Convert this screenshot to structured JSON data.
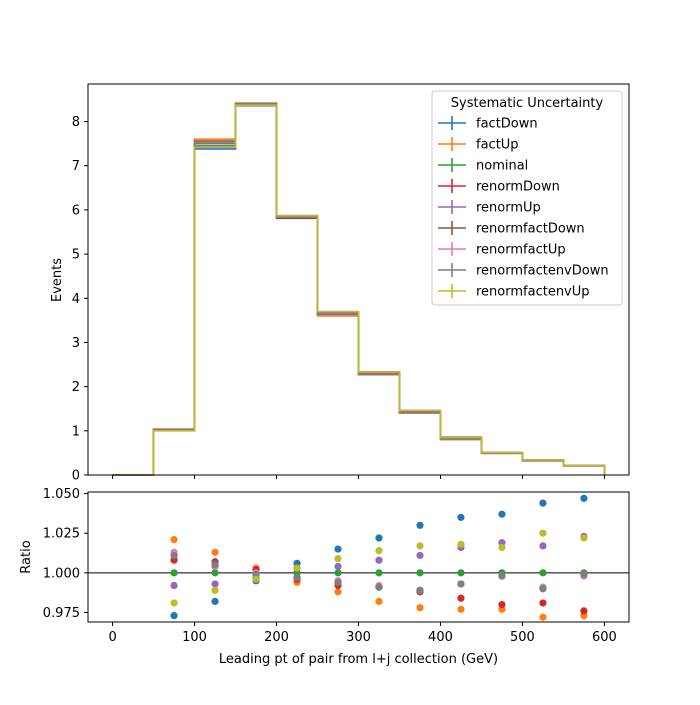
{
  "chart_data": [
    {
      "type": "line",
      "subtype": "step-histogram",
      "title": "",
      "xlabel": "",
      "ylabel": "Events",
      "xlim": [
        -30,
        630
      ],
      "ylim": [
        0,
        8.85
      ],
      "xticks": [
        0,
        100,
        200,
        300,
        400,
        500,
        600
      ],
      "yticks": [
        0,
        1,
        2,
        3,
        4,
        5,
        6,
        7,
        8
      ],
      "bin_edges": [
        0,
        50,
        100,
        150,
        200,
        250,
        300,
        350,
        400,
        450,
        500,
        550,
        600
      ],
      "legend": {
        "title": "Systematic Uncertainty",
        "placement": "top-right"
      },
      "series": [
        {
          "name": "factDown",
          "color": "#1f77b4",
          "values": [
            0,
            1.03,
            7.38,
            8.36,
            5.81,
            3.63,
            2.33,
            1.46,
            0.86,
            0.51,
            0.34,
            0.21
          ]
        },
        {
          "name": "factUp",
          "color": "#ff7f0e",
          "values": [
            0,
            1.04,
            7.6,
            8.42,
            5.83,
            3.6,
            2.27,
            1.4,
            0.8,
            0.49,
            0.32,
            0.2
          ]
        },
        {
          "name": "nominal",
          "color": "#2ca02c",
          "values": [
            0,
            1.02,
            7.5,
            8.4,
            5.85,
            3.65,
            2.3,
            1.43,
            0.83,
            0.5,
            0.33,
            0.21
          ]
        },
        {
          "name": "renormDown",
          "color": "#d62728",
          "values": [
            0,
            1.03,
            7.56,
            8.41,
            5.82,
            3.63,
            2.29,
            1.41,
            0.82,
            0.49,
            0.32,
            0.2
          ]
        },
        {
          "name": "renormUp",
          "color": "#9467bd",
          "values": [
            0,
            1.01,
            7.45,
            8.38,
            5.87,
            3.67,
            2.33,
            1.45,
            0.85,
            0.51,
            0.34,
            0.21
          ]
        },
        {
          "name": "renormfactDown",
          "color": "#8c564b",
          "values": [
            0,
            1.03,
            7.54,
            8.4,
            5.84,
            3.64,
            2.27,
            1.41,
            0.82,
            0.5,
            0.33,
            0.21
          ]
        },
        {
          "name": "renormfactUp",
          "color": "#e377c2",
          "values": [
            0,
            1.03,
            7.53,
            8.41,
            5.84,
            3.63,
            2.28,
            1.41,
            0.82,
            0.49,
            0.32,
            0.2
          ]
        },
        {
          "name": "renormfactenvDown",
          "color": "#7f7f7f",
          "values": [
            0,
            1.03,
            7.54,
            8.41,
            5.84,
            3.64,
            2.27,
            1.41,
            0.82,
            0.5,
            0.33,
            0.21
          ]
        },
        {
          "name": "renormfactenvUp",
          "color": "#bcbd22",
          "values": [
            0,
            1.0,
            7.42,
            8.37,
            5.87,
            3.7,
            2.33,
            1.46,
            0.85,
            0.51,
            0.34,
            0.21
          ]
        }
      ]
    },
    {
      "type": "scatter",
      "title": "",
      "xlabel": "Leading pt of pair from l+j collection (GeV)",
      "ylabel": "Ratio",
      "xlim": [
        -30,
        630
      ],
      "ylim": [
        0.969,
        1.051
      ],
      "xticks": [
        0,
        100,
        200,
        300,
        400,
        500,
        600
      ],
      "yticks": [
        0.975,
        1.0,
        1.025,
        1.05
      ],
      "ytick_labels": [
        "0.975",
        "1.000",
        "1.025",
        "1.050"
      ],
      "reference_line": 1.0,
      "x": [
        75,
        125,
        175,
        225,
        275,
        325,
        375,
        425,
        475,
        525,
        575
      ],
      "series": [
        {
          "name": "factDown",
          "color": "#1f77b4",
          "values": [
            0.973,
            0.982,
            0.995,
            1.006,
            1.015,
            1.022,
            1.03,
            1.035,
            1.037,
            1.044,
            1.047
          ]
        },
        {
          "name": "factUp",
          "color": "#ff7f0e",
          "values": [
            1.021,
            1.013,
            1.003,
            0.994,
            0.988,
            0.982,
            0.978,
            0.977,
            0.977,
            0.972,
            0.973
          ]
        },
        {
          "name": "nominal",
          "color": "#2ca02c",
          "values": [
            1.0,
            1.0,
            1.0,
            1.0,
            1.0,
            1.0,
            1.0,
            1.0,
            1.0,
            1.0,
            1.0
          ]
        },
        {
          "name": "renormDown",
          "color": "#d62728",
          "values": [
            1.008,
            1.007,
            1.002,
            0.996,
            0.992,
            0.991,
            0.988,
            0.984,
            0.98,
            0.981,
            0.976
          ]
        },
        {
          "name": "renormUp",
          "color": "#9467bd",
          "values": [
            0.992,
            0.993,
            0.998,
            1.003,
            1.004,
            1.008,
            1.011,
            1.016,
            1.019,
            1.017,
            1.023
          ]
        },
        {
          "name": "renormfactDown",
          "color": "#8c564b",
          "values": [
            1.011,
            1.006,
            0.999,
            0.997,
            0.994,
            0.991,
            0.989,
            0.993,
            0.998,
            0.99,
            0.999
          ]
        },
        {
          "name": "renormfactUp",
          "color": "#e377c2",
          "values": [
            1.013,
            1.004,
            1.0,
            0.997,
            0.995,
            0.992,
            0.989,
            0.993,
            0.998,
            0.991,
            0.998
          ]
        },
        {
          "name": "renormfactenvDown",
          "color": "#7f7f7f",
          "values": [
            1.011,
            1.005,
            0.999,
            0.997,
            0.994,
            0.991,
            0.989,
            0.993,
            0.998,
            0.99,
            0.999
          ]
        },
        {
          "name": "renormfactenvUp",
          "color": "#bcbd22",
          "values": [
            0.981,
            0.989,
            0.996,
            1.003,
            1.009,
            1.014,
            1.017,
            1.018,
            1.016,
            1.025,
            1.022
          ]
        }
      ]
    }
  ]
}
